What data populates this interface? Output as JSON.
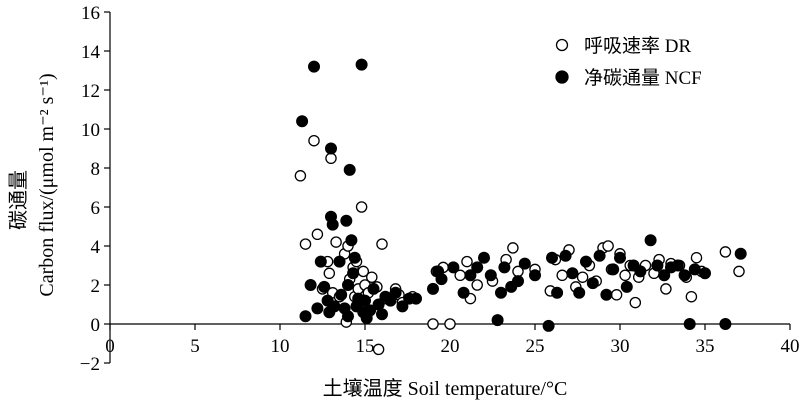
{
  "chart_data": {
    "type": "scatter",
    "xlabel": "土壤温度 Soil temperature/°C",
    "ylabel_cn": "碳通量",
    "ylabel_en": "Carbon flux/(μmol m⁻² s⁻¹)",
    "xlim": [
      0,
      40
    ],
    "ylim": [
      -2,
      16
    ],
    "xticks": [
      "0",
      "5",
      "10",
      "15",
      "20",
      "25",
      "30",
      "35",
      "40"
    ],
    "yticks": [
      "−2",
      "0",
      "2",
      "4",
      "6",
      "8",
      "10",
      "12",
      "14",
      "16"
    ],
    "grid": false,
    "legend_position": "top-right",
    "series": [
      {
        "name": "呼吸速率 DR",
        "marker": "open-circle",
        "color": "#000000",
        "points": [
          [
            11.2,
            7.6
          ],
          [
            11.5,
            4.1
          ],
          [
            12.0,
            9.4
          ],
          [
            12.2,
            4.6
          ],
          [
            12.5,
            1.8
          ],
          [
            12.8,
            3.2
          ],
          [
            12.9,
            2.6
          ],
          [
            13.0,
            8.5
          ],
          [
            13.1,
            1.6
          ],
          [
            13.3,
            4.2
          ],
          [
            13.5,
            1.4
          ],
          [
            13.8,
            3.6
          ],
          [
            13.9,
            0.1
          ],
          [
            14.0,
            4.0
          ],
          [
            14.1,
            2.3
          ],
          [
            14.3,
            2.9
          ],
          [
            14.4,
            1.4
          ],
          [
            14.5,
            3.2
          ],
          [
            14.6,
            1.8
          ],
          [
            14.8,
            6.0
          ],
          [
            14.9,
            2.7
          ],
          [
            15.0,
            2.0
          ],
          [
            15.2,
            1.6
          ],
          [
            15.4,
            2.4
          ],
          [
            15.7,
            1.9
          ],
          [
            15.8,
            -1.3
          ],
          [
            16.0,
            4.1
          ],
          [
            16.2,
            1.3
          ],
          [
            16.8,
            1.8
          ],
          [
            17.0,
            1.5
          ],
          [
            17.2,
            1.1
          ],
          [
            17.8,
            1.4
          ],
          [
            19.0,
            0.0
          ],
          [
            19.2,
            2.7
          ],
          [
            19.6,
            2.9
          ],
          [
            20.0,
            0.0
          ],
          [
            20.6,
            2.5
          ],
          [
            21.0,
            3.2
          ],
          [
            21.2,
            1.3
          ],
          [
            21.6,
            2.0
          ],
          [
            22.5,
            2.2
          ],
          [
            23.3,
            3.3
          ],
          [
            23.7,
            3.9
          ],
          [
            24.0,
            2.7
          ],
          [
            25.0,
            2.8
          ],
          [
            25.9,
            1.7
          ],
          [
            26.2,
            3.3
          ],
          [
            26.6,
            2.5
          ],
          [
            27.0,
            3.8
          ],
          [
            27.4,
            1.9
          ],
          [
            27.8,
            2.4
          ],
          [
            28.2,
            3.0
          ],
          [
            28.6,
            2.2
          ],
          [
            29.0,
            3.9
          ],
          [
            29.3,
            4.0
          ],
          [
            29.5,
            2.8
          ],
          [
            29.8,
            1.5
          ],
          [
            30.0,
            3.6
          ],
          [
            30.3,
            2.5
          ],
          [
            30.6,
            3.0
          ],
          [
            30.9,
            1.1
          ],
          [
            31.1,
            2.4
          ],
          [
            31.5,
            3.0
          ],
          [
            32.0,
            2.6
          ],
          [
            32.3,
            3.3
          ],
          [
            32.7,
            1.8
          ],
          [
            33.0,
            3.1
          ],
          [
            33.5,
            3.0
          ],
          [
            33.9,
            2.4
          ],
          [
            34.2,
            1.4
          ],
          [
            34.5,
            3.4
          ],
          [
            34.8,
            2.7
          ],
          [
            36.2,
            3.7
          ],
          [
            37.0,
            2.7
          ]
        ]
      },
      {
        "name": "净碳通量 NCF",
        "marker": "filled-circle",
        "color": "#000000",
        "points": [
          [
            11.3,
            10.4
          ],
          [
            11.5,
            0.4
          ],
          [
            11.8,
            2.0
          ],
          [
            12.0,
            13.2
          ],
          [
            12.2,
            0.8
          ],
          [
            12.4,
            3.2
          ],
          [
            12.6,
            1.9
          ],
          [
            12.8,
            1.2
          ],
          [
            12.9,
            0.6
          ],
          [
            13.0,
            9.0
          ],
          [
            13.0,
            5.5
          ],
          [
            13.1,
            5.1
          ],
          [
            13.2,
            0.9
          ],
          [
            13.5,
            3.2
          ],
          [
            13.6,
            1.5
          ],
          [
            13.8,
            0.8
          ],
          [
            13.9,
            5.3
          ],
          [
            14.0,
            0.4
          ],
          [
            14.0,
            2.0
          ],
          [
            14.1,
            7.9
          ],
          [
            14.2,
            4.3
          ],
          [
            14.3,
            2.6
          ],
          [
            14.4,
            3.4
          ],
          [
            14.5,
            0.9
          ],
          [
            14.6,
            1.3
          ],
          [
            14.8,
            13.3
          ],
          [
            14.9,
            0.6
          ],
          [
            15.0,
            1.2
          ],
          [
            15.1,
            0.3
          ],
          [
            15.3,
            0.7
          ],
          [
            15.5,
            1.8
          ],
          [
            15.8,
            1.0
          ],
          [
            16.0,
            0.5
          ],
          [
            16.2,
            1.4
          ],
          [
            16.5,
            1.2
          ],
          [
            16.8,
            1.6
          ],
          [
            17.2,
            0.9
          ],
          [
            17.6,
            1.3
          ],
          [
            18.0,
            1.3
          ],
          [
            19.0,
            1.8
          ],
          [
            19.3,
            2.7
          ],
          [
            19.5,
            2.3
          ],
          [
            20.2,
            2.9
          ],
          [
            20.8,
            1.6
          ],
          [
            21.2,
            2.5
          ],
          [
            21.6,
            2.9
          ],
          [
            22.0,
            3.4
          ],
          [
            22.4,
            2.5
          ],
          [
            22.8,
            0.2
          ],
          [
            23.0,
            1.6
          ],
          [
            23.2,
            2.9
          ],
          [
            23.6,
            1.9
          ],
          [
            24.0,
            2.2
          ],
          [
            24.4,
            3.1
          ],
          [
            25.0,
            2.5
          ],
          [
            25.8,
            -0.1
          ],
          [
            26.0,
            3.4
          ],
          [
            26.3,
            1.6
          ],
          [
            26.8,
            3.5
          ],
          [
            27.2,
            2.6
          ],
          [
            27.6,
            1.6
          ],
          [
            28.0,
            3.2
          ],
          [
            28.4,
            2.1
          ],
          [
            28.8,
            3.5
          ],
          [
            29.2,
            1.5
          ],
          [
            29.6,
            2.8
          ],
          [
            30.0,
            3.4
          ],
          [
            30.4,
            1.9
          ],
          [
            30.8,
            3.0
          ],
          [
            31.2,
            2.7
          ],
          [
            31.8,
            4.3
          ],
          [
            32.2,
            3.0
          ],
          [
            32.6,
            2.5
          ],
          [
            33.0,
            2.9
          ],
          [
            33.4,
            3.0
          ],
          [
            33.8,
            2.5
          ],
          [
            34.1,
            0.0
          ],
          [
            34.4,
            2.8
          ],
          [
            35.0,
            2.6
          ],
          [
            36.2,
            0.0
          ],
          [
            37.1,
            3.6
          ]
        ]
      }
    ]
  }
}
